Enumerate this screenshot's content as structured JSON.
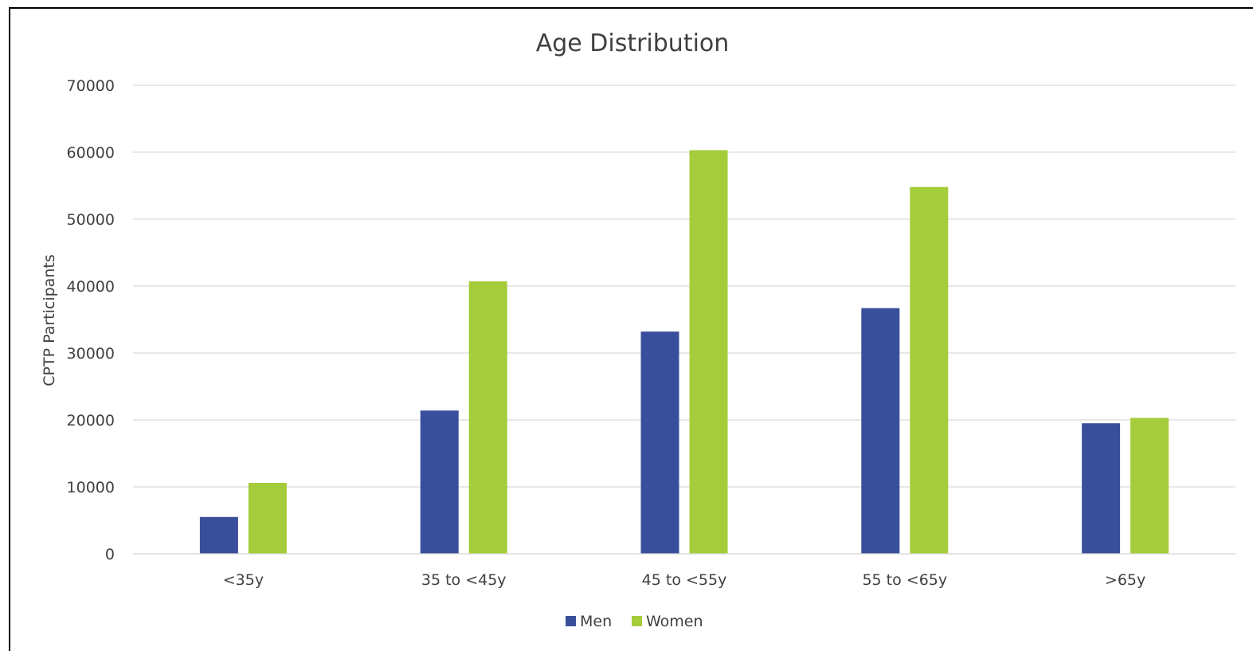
{
  "chart_data": {
    "type": "bar",
    "title": "Age Distribution",
    "xlabel": "",
    "ylabel": "CPTP Participants",
    "categories": [
      "<35y",
      "35 to <45y",
      "45 to <55y",
      "55 to <65y",
      ">65y"
    ],
    "series": [
      {
        "name": "Men",
        "color": "#3a4f9c",
        "values": [
          5500,
          21400,
          33200,
          36700,
          19500
        ]
      },
      {
        "name": "Women",
        "color": "#a5cc3a",
        "values": [
          10600,
          40700,
          60300,
          54800,
          20300
        ]
      }
    ],
    "ylim": [
      0,
      70000
    ],
    "yticks": [
      "0",
      "10000",
      "20000",
      "30000",
      "40000",
      "50000",
      "60000",
      "70000"
    ],
    "grid": true,
    "legend": "bottom"
  }
}
